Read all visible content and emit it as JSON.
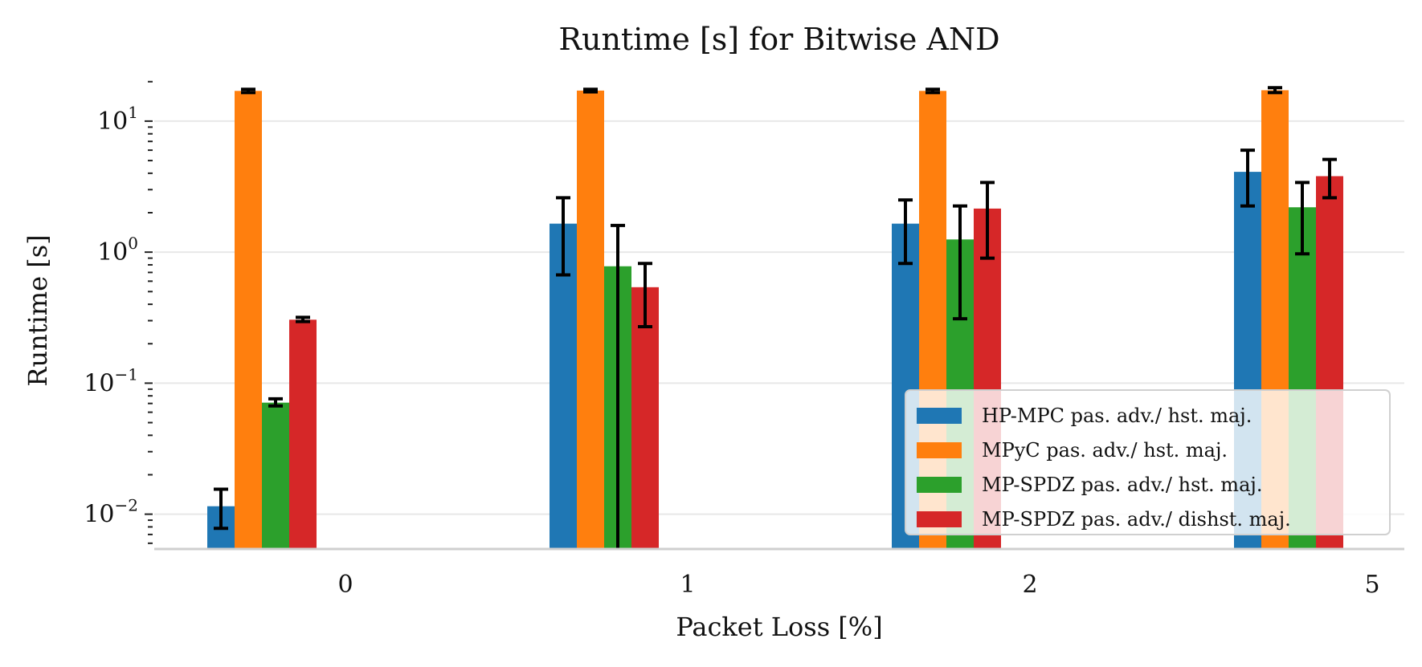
{
  "chart_data": {
    "type": "bar",
    "title": "Runtime [s] for Bitwise AND",
    "xlabel": "Packet Loss [%]",
    "ylabel": "Runtime [s]",
    "yscale": "log",
    "ylim": [
      0.0055,
      22
    ],
    "grid": "horizontal major",
    "legend_position": "bottom-right",
    "categories": [
      "0",
      "1",
      "2",
      "5"
    ],
    "y_ticks": [
      {
        "value": 0.01,
        "base": "10",
        "exp": "−2"
      },
      {
        "value": 0.1,
        "base": "10",
        "exp": "−1"
      },
      {
        "value": 1,
        "base": "10",
        "exp": "0"
      },
      {
        "value": 10,
        "base": "10",
        "exp": "1"
      }
    ],
    "series": [
      {
        "name": "HP-MPC pas. adv./ hst. maj.",
        "color": "#1f77b4",
        "values": [
          0.0115,
          1.65,
          1.65,
          4.1
        ],
        "err_low": [
          0.0078,
          0.67,
          0.82,
          2.25
        ],
        "err_high": [
          0.0155,
          2.6,
          2.5,
          6.0
        ]
      },
      {
        "name": "MPyC pas. adv./ hst. maj.",
        "color": "#ff7f0e",
        "values": [
          17.0,
          17.1,
          17.0,
          17.2
        ],
        "err_low": [
          16.5,
          16.7,
          16.5,
          16.5
        ],
        "err_high": [
          17.5,
          17.5,
          17.5,
          18.0
        ]
      },
      {
        "name": "MP-SPDZ pas. adv./ hst. maj.",
        "color": "#2ca02c",
        "values": [
          0.071,
          0.78,
          1.25,
          2.2
        ],
        "err_low": [
          0.067,
          0.0055,
          0.31,
          0.97
        ],
        "err_high": [
          0.076,
          1.6,
          2.25,
          3.4
        ]
      },
      {
        "name": "MP-SPDZ pas. adv./ dishst. maj.",
        "color": "#d62728",
        "values": [
          0.305,
          0.54,
          2.15,
          3.8
        ],
        "err_low": [
          0.295,
          0.27,
          0.9,
          2.6
        ],
        "err_high": [
          0.318,
          0.82,
          3.4,
          5.1
        ]
      }
    ]
  }
}
